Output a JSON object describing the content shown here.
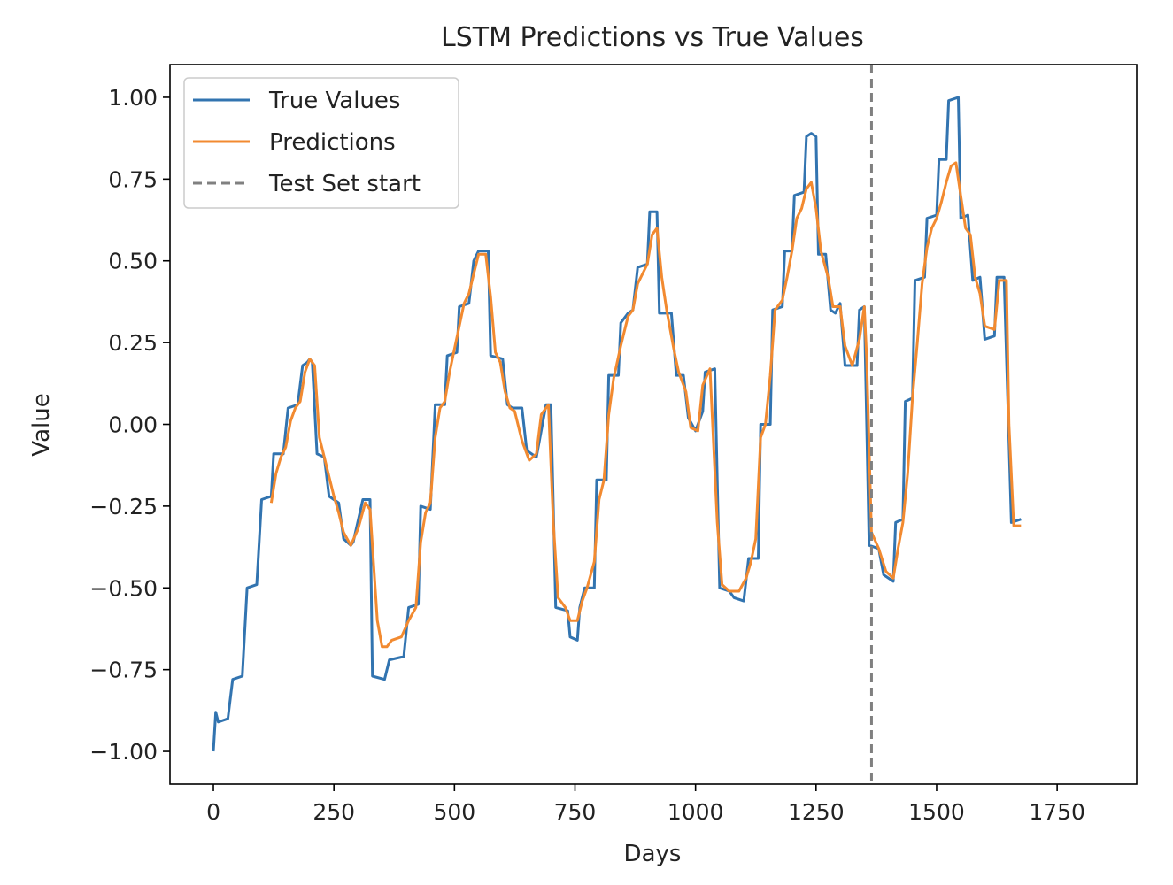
{
  "chart_data": {
    "type": "line",
    "title": "LSTM Predictions vs True Values",
    "xlabel": "Days",
    "ylabel": "Value",
    "xlim": [
      -90,
      1915
    ],
    "ylim": [
      -1.1,
      1.1
    ],
    "x_ticks": [
      0,
      250,
      500,
      750,
      1000,
      1250,
      1500,
      1750
    ],
    "x_tick_labels": [
      "0",
      "250",
      "500",
      "750",
      "1000",
      "1250",
      "1500",
      "1750"
    ],
    "y_ticks": [
      1.0,
      0.75,
      0.5,
      0.25,
      0.0,
      -0.25,
      -0.5,
      -0.75,
      -1.0
    ],
    "y_tick_labels": [
      "1.00",
      "0.75",
      "0.50",
      "0.25",
      "0.00",
      "−0.25",
      "−0.50",
      "−0.75",
      "−1.00"
    ],
    "grid": false,
    "legend_position": "top-left",
    "test_set_start_x": 1365,
    "series": [
      {
        "name": "True Values",
        "color": "#3274b0",
        "style": "solid",
        "points": [
          [
            0,
            -1.0
          ],
          [
            5,
            -0.88
          ],
          [
            10,
            -0.91
          ],
          [
            30,
            -0.9
          ],
          [
            40,
            -0.78
          ],
          [
            60,
            -0.77
          ],
          [
            70,
            -0.5
          ],
          [
            90,
            -0.49
          ],
          [
            100,
            -0.23
          ],
          [
            120,
            -0.22
          ],
          [
            125,
            -0.09
          ],
          [
            145,
            -0.09
          ],
          [
            155,
            0.05
          ],
          [
            175,
            0.06
          ],
          [
            185,
            0.18
          ],
          [
            195,
            0.19
          ],
          [
            200,
            0.2
          ],
          [
            205,
            0.19
          ],
          [
            215,
            -0.09
          ],
          [
            230,
            -0.1
          ],
          [
            240,
            -0.22
          ],
          [
            260,
            -0.24
          ],
          [
            270,
            -0.35
          ],
          [
            285,
            -0.37
          ],
          [
            290,
            -0.36
          ],
          [
            310,
            -0.23
          ],
          [
            325,
            -0.23
          ],
          [
            330,
            -0.77
          ],
          [
            355,
            -0.78
          ],
          [
            365,
            -0.72
          ],
          [
            395,
            -0.71
          ],
          [
            405,
            -0.56
          ],
          [
            425,
            -0.55
          ],
          [
            430,
            -0.25
          ],
          [
            450,
            -0.26
          ],
          [
            460,
            0.06
          ],
          [
            480,
            0.06
          ],
          [
            485,
            0.21
          ],
          [
            505,
            0.22
          ],
          [
            510,
            0.36
          ],
          [
            530,
            0.37
          ],
          [
            540,
            0.5
          ],
          [
            550,
            0.53
          ],
          [
            570,
            0.53
          ],
          [
            575,
            0.21
          ],
          [
            600,
            0.2
          ],
          [
            610,
            0.06
          ],
          [
            620,
            0.05
          ],
          [
            640,
            0.05
          ],
          [
            650,
            -0.08
          ],
          [
            670,
            -0.1
          ],
          [
            690,
            0.06
          ],
          [
            700,
            0.06
          ],
          [
            710,
            -0.56
          ],
          [
            735,
            -0.57
          ],
          [
            740,
            -0.65
          ],
          [
            755,
            -0.66
          ],
          [
            760,
            -0.56
          ],
          [
            770,
            -0.5
          ],
          [
            790,
            -0.5
          ],
          [
            795,
            -0.17
          ],
          [
            815,
            -0.17
          ],
          [
            820,
            0.15
          ],
          [
            840,
            0.15
          ],
          [
            845,
            0.31
          ],
          [
            860,
            0.34
          ],
          [
            870,
            0.35
          ],
          [
            880,
            0.48
          ],
          [
            900,
            0.49
          ],
          [
            905,
            0.65
          ],
          [
            920,
            0.65
          ],
          [
            925,
            0.34
          ],
          [
            950,
            0.34
          ],
          [
            960,
            0.15
          ],
          [
            975,
            0.15
          ],
          [
            985,
            0.02
          ],
          [
            1000,
            -0.02
          ],
          [
            1015,
            0.04
          ],
          [
            1020,
            0.16
          ],
          [
            1040,
            0.17
          ],
          [
            1050,
            -0.5
          ],
          [
            1070,
            -0.51
          ],
          [
            1080,
            -0.53
          ],
          [
            1100,
            -0.54
          ],
          [
            1110,
            -0.41
          ],
          [
            1130,
            -0.41
          ],
          [
            1135,
            0.0
          ],
          [
            1155,
            0.0
          ],
          [
            1160,
            0.35
          ],
          [
            1180,
            0.36
          ],
          [
            1185,
            0.53
          ],
          [
            1200,
            0.53
          ],
          [
            1205,
            0.7
          ],
          [
            1225,
            0.71
          ],
          [
            1230,
            0.88
          ],
          [
            1240,
            0.89
          ],
          [
            1250,
            0.88
          ],
          [
            1255,
            0.52
          ],
          [
            1270,
            0.52
          ],
          [
            1280,
            0.35
          ],
          [
            1290,
            0.34
          ],
          [
            1300,
            0.37
          ],
          [
            1310,
            0.18
          ],
          [
            1335,
            0.18
          ],
          [
            1340,
            0.35
          ],
          [
            1350,
            0.36
          ],
          [
            1360,
            -0.37
          ],
          [
            1380,
            -0.38
          ],
          [
            1390,
            -0.46
          ],
          [
            1410,
            -0.48
          ],
          [
            1415,
            -0.3
          ],
          [
            1430,
            -0.29
          ],
          [
            1435,
            0.07
          ],
          [
            1450,
            0.08
          ],
          [
            1455,
            0.44
          ],
          [
            1475,
            0.45
          ],
          [
            1480,
            0.63
          ],
          [
            1500,
            0.64
          ],
          [
            1505,
            0.81
          ],
          [
            1520,
            0.81
          ],
          [
            1525,
            0.99
          ],
          [
            1545,
            1.0
          ],
          [
            1550,
            0.63
          ],
          [
            1565,
            0.64
          ],
          [
            1575,
            0.44
          ],
          [
            1590,
            0.45
          ],
          [
            1600,
            0.26
          ],
          [
            1620,
            0.27
          ],
          [
            1625,
            0.45
          ],
          [
            1640,
            0.45
          ],
          [
            1655,
            -0.3
          ],
          [
            1675,
            -0.29
          ]
        ]
      },
      {
        "name": "Predictions",
        "color": "#f28a30",
        "style": "solid",
        "points": [
          [
            120,
            -0.24
          ],
          [
            130,
            -0.15
          ],
          [
            140,
            -0.1
          ],
          [
            150,
            -0.07
          ],
          [
            160,
            0.01
          ],
          [
            170,
            0.05
          ],
          [
            180,
            0.07
          ],
          [
            190,
            0.16
          ],
          [
            200,
            0.2
          ],
          [
            210,
            0.18
          ],
          [
            220,
            -0.04
          ],
          [
            230,
            -0.1
          ],
          [
            240,
            -0.16
          ],
          [
            250,
            -0.22
          ],
          [
            260,
            -0.27
          ],
          [
            270,
            -0.33
          ],
          [
            285,
            -0.37
          ],
          [
            300,
            -0.32
          ],
          [
            315,
            -0.24
          ],
          [
            325,
            -0.26
          ],
          [
            340,
            -0.6
          ],
          [
            350,
            -0.68
          ],
          [
            360,
            -0.68
          ],
          [
            370,
            -0.66
          ],
          [
            390,
            -0.65
          ],
          [
            405,
            -0.6
          ],
          [
            420,
            -0.56
          ],
          [
            430,
            -0.36
          ],
          [
            440,
            -0.27
          ],
          [
            450,
            -0.24
          ],
          [
            460,
            -0.04
          ],
          [
            470,
            0.05
          ],
          [
            480,
            0.07
          ],
          [
            490,
            0.16
          ],
          [
            500,
            0.23
          ],
          [
            510,
            0.3
          ],
          [
            520,
            0.37
          ],
          [
            530,
            0.4
          ],
          [
            540,
            0.46
          ],
          [
            550,
            0.52
          ],
          [
            565,
            0.52
          ],
          [
            575,
            0.39
          ],
          [
            585,
            0.22
          ],
          [
            595,
            0.19
          ],
          [
            605,
            0.1
          ],
          [
            615,
            0.05
          ],
          [
            625,
            0.04
          ],
          [
            640,
            -0.05
          ],
          [
            655,
            -0.11
          ],
          [
            670,
            -0.09
          ],
          [
            680,
            0.03
          ],
          [
            695,
            0.06
          ],
          [
            705,
            -0.3
          ],
          [
            715,
            -0.53
          ],
          [
            730,
            -0.56
          ],
          [
            740,
            -0.6
          ],
          [
            755,
            -0.6
          ],
          [
            765,
            -0.54
          ],
          [
            775,
            -0.5
          ],
          [
            790,
            -0.42
          ],
          [
            800,
            -0.23
          ],
          [
            810,
            -0.17
          ],
          [
            820,
            0.03
          ],
          [
            830,
            0.14
          ],
          [
            845,
            0.24
          ],
          [
            860,
            0.33
          ],
          [
            870,
            0.35
          ],
          [
            880,
            0.43
          ],
          [
            900,
            0.49
          ],
          [
            910,
            0.58
          ],
          [
            920,
            0.6
          ],
          [
            930,
            0.45
          ],
          [
            940,
            0.35
          ],
          [
            955,
            0.23
          ],
          [
            965,
            0.16
          ],
          [
            980,
            0.1
          ],
          [
            990,
            -0.01
          ],
          [
            1005,
            -0.02
          ],
          [
            1015,
            0.12
          ],
          [
            1030,
            0.17
          ],
          [
            1045,
            -0.3
          ],
          [
            1055,
            -0.49
          ],
          [
            1070,
            -0.51
          ],
          [
            1090,
            -0.51
          ],
          [
            1105,
            -0.47
          ],
          [
            1115,
            -0.42
          ],
          [
            1125,
            -0.35
          ],
          [
            1135,
            -0.04
          ],
          [
            1145,
            0.0
          ],
          [
            1155,
            0.15
          ],
          [
            1165,
            0.35
          ],
          [
            1180,
            0.38
          ],
          [
            1190,
            0.45
          ],
          [
            1200,
            0.53
          ],
          [
            1210,
            0.63
          ],
          [
            1220,
            0.66
          ],
          [
            1230,
            0.72
          ],
          [
            1240,
            0.74
          ],
          [
            1250,
            0.66
          ],
          [
            1260,
            0.53
          ],
          [
            1275,
            0.45
          ],
          [
            1285,
            0.36
          ],
          [
            1300,
            0.36
          ],
          [
            1310,
            0.24
          ],
          [
            1325,
            0.18
          ],
          [
            1340,
            0.26
          ],
          [
            1350,
            0.36
          ],
          [
            1355,
            0.2
          ],
          [
            1365,
            -0.33
          ],
          [
            1380,
            -0.38
          ],
          [
            1395,
            -0.45
          ],
          [
            1410,
            -0.47
          ],
          [
            1420,
            -0.38
          ],
          [
            1430,
            -0.3
          ],
          [
            1440,
            -0.15
          ],
          [
            1450,
            0.08
          ],
          [
            1460,
            0.25
          ],
          [
            1470,
            0.43
          ],
          [
            1480,
            0.54
          ],
          [
            1490,
            0.6
          ],
          [
            1500,
            0.63
          ],
          [
            1510,
            0.68
          ],
          [
            1520,
            0.74
          ],
          [
            1530,
            0.79
          ],
          [
            1540,
            0.8
          ],
          [
            1550,
            0.7
          ],
          [
            1560,
            0.6
          ],
          [
            1570,
            0.58
          ],
          [
            1580,
            0.45
          ],
          [
            1590,
            0.4
          ],
          [
            1600,
            0.3
          ],
          [
            1620,
            0.29
          ],
          [
            1630,
            0.44
          ],
          [
            1645,
            0.44
          ],
          [
            1650,
            0.0
          ],
          [
            1660,
            -0.31
          ],
          [
            1675,
            -0.31
          ]
        ]
      },
      {
        "name": "Test Set start",
        "color": "#808080",
        "style": "dashed"
      }
    ]
  }
}
